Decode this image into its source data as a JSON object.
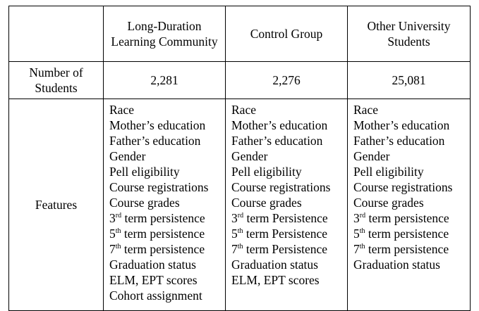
{
  "columns": [
    "",
    "Long-Duration Learning Community",
    "Control Group",
    "Other University Students"
  ],
  "rows": {
    "count": {
      "label": "Number of Students",
      "values": [
        "2,281",
        "2,276",
        "25,081"
      ]
    },
    "features": {
      "label": "Features",
      "col1": [
        {
          "pre": "Race"
        },
        {
          "pre": "Mother’s education"
        },
        {
          "pre": "Father’s education"
        },
        {
          "pre": "Gender"
        },
        {
          "pre": "Pell eligibility"
        },
        {
          "pre": "Course registrations"
        },
        {
          "pre": "Course grades"
        },
        {
          "pre": "3",
          "sup": "rd",
          "post": " term persistence"
        },
        {
          "pre": "5",
          "sup": "th",
          "post": " term persistence"
        },
        {
          "pre": "7",
          "sup": "th",
          "post": " term persistence"
        },
        {
          "pre": "Graduation status"
        },
        {
          "pre": "ELM, EPT scores"
        },
        {
          "pre": "Cohort assignment"
        }
      ],
      "col2": [
        {
          "pre": "Race"
        },
        {
          "pre": "Mother’s education"
        },
        {
          "pre": "Father’s education"
        },
        {
          "pre": "Gender"
        },
        {
          "pre": "Pell eligibility"
        },
        {
          "pre": "Course registrations"
        },
        {
          "pre": "Course grades"
        },
        {
          "pre": "3",
          "sup": "rd",
          "post": " term Persistence"
        },
        {
          "pre": "5",
          "sup": "th",
          "post": " term Persistence"
        },
        {
          "pre": "7",
          "sup": "th",
          "post": " term Persistence"
        },
        {
          "pre": "Graduation status"
        },
        {
          "pre": "ELM, EPT scores"
        }
      ],
      "col3": [
        {
          "pre": "Race"
        },
        {
          "pre": "Mother’s education"
        },
        {
          "pre": "Father’s education"
        },
        {
          "pre": "Gender"
        },
        {
          "pre": "Pell eligibility"
        },
        {
          "pre": "Course registrations"
        },
        {
          "pre": "Course grades"
        },
        {
          "pre": "3",
          "sup": "rd",
          "post": " term persistence"
        },
        {
          "pre": "5",
          "sup": "th",
          "post": " term persistence"
        },
        {
          "pre": "7",
          "sup": "th",
          "post": " term persistence"
        },
        {
          "pre": "Graduation status"
        }
      ]
    }
  }
}
